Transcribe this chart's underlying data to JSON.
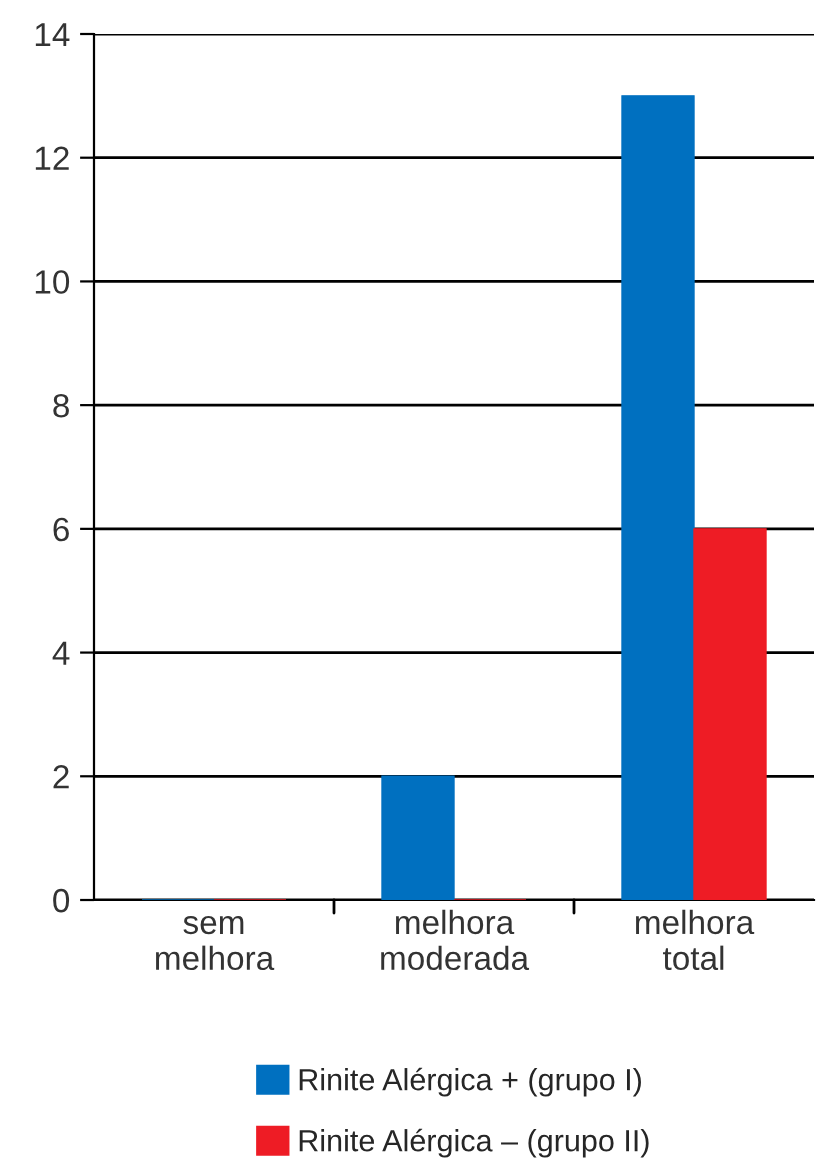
{
  "chart_data": {
    "type": "bar",
    "categories": [
      "sem\nmelhora",
      "melhora\nmoderada",
      "melhora\ntotal"
    ],
    "series": [
      {
        "name": "Rinite Alérgica + (grupo I)",
        "color": "#0070c0",
        "values": [
          0,
          2,
          13
        ]
      },
      {
        "name": "Rinite Alérgica – (grupo II)",
        "color": "#ee1c25",
        "values": [
          0,
          0,
          6
        ]
      }
    ],
    "ylim": [
      0,
      14
    ],
    "yticks": [
      0,
      2,
      4,
      6,
      8,
      10,
      12,
      14
    ],
    "grid": "y",
    "legend": "bottom"
  }
}
